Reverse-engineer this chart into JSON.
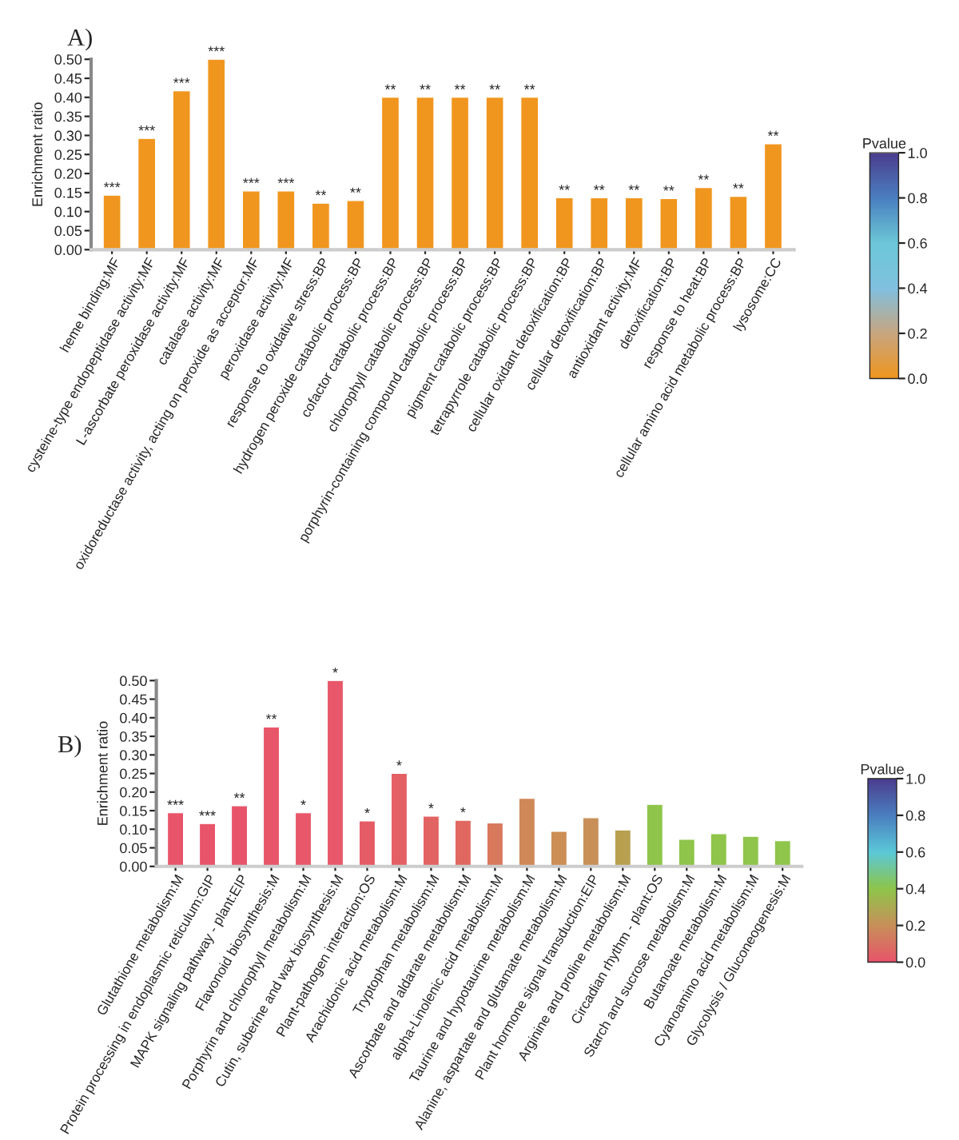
{
  "chart_data": [
    {
      "type": "bar",
      "title": "A)",
      "ylabel": "Enrichment ratio",
      "clabel": "Pvalue",
      "clim": [
        0,
        1
      ],
      "cticks": [
        {
          "value": 0,
          "label": "0.0"
        },
        {
          "value": 0.2,
          "label": "0.2"
        },
        {
          "value": 0.4,
          "label": "0.4"
        },
        {
          "value": 0.6,
          "label": "0.6"
        },
        {
          "value": 0.8,
          "label": "0.8"
        },
        {
          "value": 1,
          "label": "1.0"
        }
      ],
      "categories": [
        "heme binding:MF",
        "cysteine-type endopeptidase activity:MF",
        "L-ascorbate peroxidase activity:MF",
        "catalase activity:MF",
        "oxidoreductase activity, acting on peroxide as acceptor:MF",
        "peroxidase activity:MF",
        "response to oxidative stress:BP",
        "hydrogen peroxide catabolic process:BP",
        "cofactor catabolic process:BP",
        "chlorophyll catabolic process:BP",
        "porphyrin-containing compound catabolic process:BP",
        "pigment catabolic process:BP",
        "tetrapyrrole catabolic process:BP",
        "cellular oxidant detoxification:BP",
        "cellular detoxification:BP",
        "antioxidant activity:MF",
        "detoxification:BP",
        "response to heat:BP",
        "cellular amino acid metabolic process:BP",
        "lysosome:CC"
      ],
      "values": [
        0.143,
        0.292,
        0.417,
        0.5,
        0.154,
        0.154,
        0.122,
        0.129,
        0.4,
        0.4,
        0.4,
        0.4,
        0.4,
        0.136,
        0.136,
        0.136,
        0.134,
        0.163,
        0.14,
        0.278
      ],
      "colors": [
        "#f0961e",
        "#f0961e",
        "#f0961e",
        "#f0961e",
        "#f0961e",
        "#f0961e",
        "#f0961e",
        "#f0961e",
        "#f0961e",
        "#f0961e",
        "#f0961e",
        "#f0961e",
        "#f0961e",
        "#f0961e",
        "#f0961e",
        "#f0961e",
        "#f0961e",
        "#f0961e",
        "#f0961e",
        "#f0961e"
      ],
      "ylim": [
        0,
        0.5
      ],
      "yticks": [
        {
          "value": 0,
          "label": "0.00"
        },
        {
          "value": 0.05,
          "label": "0.05"
        },
        {
          "value": 0.1,
          "label": "0.10"
        },
        {
          "value": 0.15,
          "label": "0.15"
        },
        {
          "value": 0.2,
          "label": "0.20"
        },
        {
          "value": 0.25,
          "label": "0.25"
        },
        {
          "value": 0.3,
          "label": "0.30"
        },
        {
          "value": 0.35,
          "label": "0.35"
        },
        {
          "value": 0.4,
          "label": "0.40"
        },
        {
          "value": 0.45,
          "label": "0.45"
        },
        {
          "value": 0.5,
          "label": "0.50"
        }
      ],
      "annotations": [
        {
          "text": "***",
          "x": "heme binding:MF",
          "y": 0.143
        },
        {
          "text": "***",
          "x": "cysteine-type endopeptidase activity:MF",
          "y": 0.292
        },
        {
          "text": "***",
          "x": "L-ascorbate peroxidase activity:MF",
          "y": 0.417
        },
        {
          "text": "***",
          "x": "catalase activity:MF",
          "y": 0.5
        },
        {
          "text": "***",
          "x": "oxidoreductase activity, acting on peroxide as acceptor:MF",
          "y": 0.154
        },
        {
          "text": "***",
          "x": "peroxidase activity:MF",
          "y": 0.154
        },
        {
          "text": "**",
          "x": "response to oxidative stress:BP",
          "y": 0.122
        },
        {
          "text": "**",
          "x": "hydrogen peroxide catabolic process:BP",
          "y": 0.129
        },
        {
          "text": "**",
          "x": "cofactor catabolic process:BP",
          "y": 0.4
        },
        {
          "text": "**",
          "x": "chlorophyll catabolic process:BP",
          "y": 0.4
        },
        {
          "text": "**",
          "x": "porphyrin-containing compound catabolic process:BP",
          "y": 0.4
        },
        {
          "text": "**",
          "x": "pigment catabolic process:BP",
          "y": 0.4
        },
        {
          "text": "**",
          "x": "tetrapyrrole catabolic process:BP",
          "y": 0.4
        },
        {
          "text": "**",
          "x": "cellular oxidant detoxification:BP",
          "y": 0.136
        },
        {
          "text": "**",
          "x": "cellular detoxification:BP",
          "y": 0.136
        },
        {
          "text": "**",
          "x": "antioxidant activity:MF",
          "y": 0.136
        },
        {
          "text": "**",
          "x": "detoxification:BP",
          "y": 0.134
        },
        {
          "text": "**",
          "x": "response to heat:BP",
          "y": 0.163
        },
        {
          "text": "**",
          "x": "cellular amino acid metabolic process:BP",
          "y": 0.14
        },
        {
          "text": "**",
          "x": "lysosome:CC",
          "y": 0.278
        }
      ]
    },
    {
      "type": "bar",
      "title": "B)",
      "ylabel": "Enrichment ratio",
      "clabel": "Pvalue",
      "clim": [
        0,
        1
      ],
      "cticks": [
        {
          "value": 0,
          "label": "0.0"
        },
        {
          "value": 0.2,
          "label": "0.2"
        },
        {
          "value": 0.4,
          "label": "0.4"
        },
        {
          "value": 0.6,
          "label": "0.6"
        },
        {
          "value": 0.8,
          "label": "0.8"
        },
        {
          "value": 1,
          "label": "1.0"
        }
      ],
      "categories": [
        "Glutathione metabolism:M",
        "Protein processing in endoplasmic reticulum:GIP",
        "MAPK signaling pathway - plant:EIP",
        "Flavonoid biosynthesis:M",
        "Porphyrin and chlorophyll metabolism:M",
        "Cutin, suberine and wax biosynthesis:M",
        "Plant-pathogen interaction:OS",
        "Arachidonic acid metabolism:M",
        "Tryptophan metabolism:M",
        "Ascorbate and aldarate metabolism:M",
        "alpha-Linolenic acid metabolism:M",
        "Taurine and hypotaurine metabolism:M",
        "Alanine, aspartate and glutamate metabolism:M",
        "Plant hormone signal transduction:EIP",
        "Arginine and proline metabolism:M",
        "Circadian rhythm - plant:OS",
        "Starch and sucrose metabolism:M",
        "Butanoate metabolism:M",
        "Cyanoamino acid metabolism:M",
        "Glycolysis / Gluconeogenesis:M"
      ],
      "values": [
        0.144,
        0.115,
        0.163,
        0.375,
        0.144,
        0.5,
        0.122,
        0.25,
        0.135,
        0.124,
        0.117,
        0.183,
        0.094,
        0.131,
        0.098,
        0.167,
        0.073,
        0.088,
        0.081,
        0.069
      ],
      "colors": [
        "#e8546a",
        "#e8546a",
        "#e8556a",
        "#e8566a",
        "#e8586a",
        "#e8586a",
        "#e65c66",
        "#e46064",
        "#e26462",
        "#e06860",
        "#d8785c",
        "#d08858",
        "#cc8e54",
        "#c89058",
        "#b8a050",
        "#8ec54a",
        "#8ec54a",
        "#8ec54a",
        "#8ec54a",
        "#8ec54a"
      ],
      "ylim": [
        0,
        0.5
      ],
      "yticks": [
        {
          "value": 0,
          "label": "0.00"
        },
        {
          "value": 0.05,
          "label": "0.05"
        },
        {
          "value": 0.1,
          "label": "0.10"
        },
        {
          "value": 0.15,
          "label": "0.15"
        },
        {
          "value": 0.2,
          "label": "0.20"
        },
        {
          "value": 0.25,
          "label": "0.25"
        },
        {
          "value": 0.3,
          "label": "0.30"
        },
        {
          "value": 0.35,
          "label": "0.35"
        },
        {
          "value": 0.4,
          "label": "0.40"
        },
        {
          "value": 0.45,
          "label": "0.45"
        },
        {
          "value": 0.5,
          "label": "0.50"
        }
      ],
      "annotations": [
        {
          "text": "***",
          "x": "Glutathione metabolism:M",
          "y": 0.144
        },
        {
          "text": "***",
          "x": "Protein processing in endoplasmic reticulum:GIP",
          "y": 0.115
        },
        {
          "text": "**",
          "x": "MAPK signaling pathway - plant:EIP",
          "y": 0.163
        },
        {
          "text": "**",
          "x": "Flavonoid biosynthesis:M",
          "y": 0.375
        },
        {
          "text": "*",
          "x": "Porphyrin and chlorophyll metabolism:M",
          "y": 0.144
        },
        {
          "text": "*",
          "x": "Cutin, suberine and wax biosynthesis:M",
          "y": 0.5
        },
        {
          "text": "*",
          "x": "Plant-pathogen interaction:OS",
          "y": 0.122
        },
        {
          "text": "*",
          "x": "Arachidonic acid metabolism:M",
          "y": 0.25
        },
        {
          "text": "*",
          "x": "Tryptophan metabolism:M",
          "y": 0.135
        },
        {
          "text": "*",
          "x": "Ascorbate and aldarate metabolism:M",
          "y": 0.124
        }
      ]
    }
  ]
}
